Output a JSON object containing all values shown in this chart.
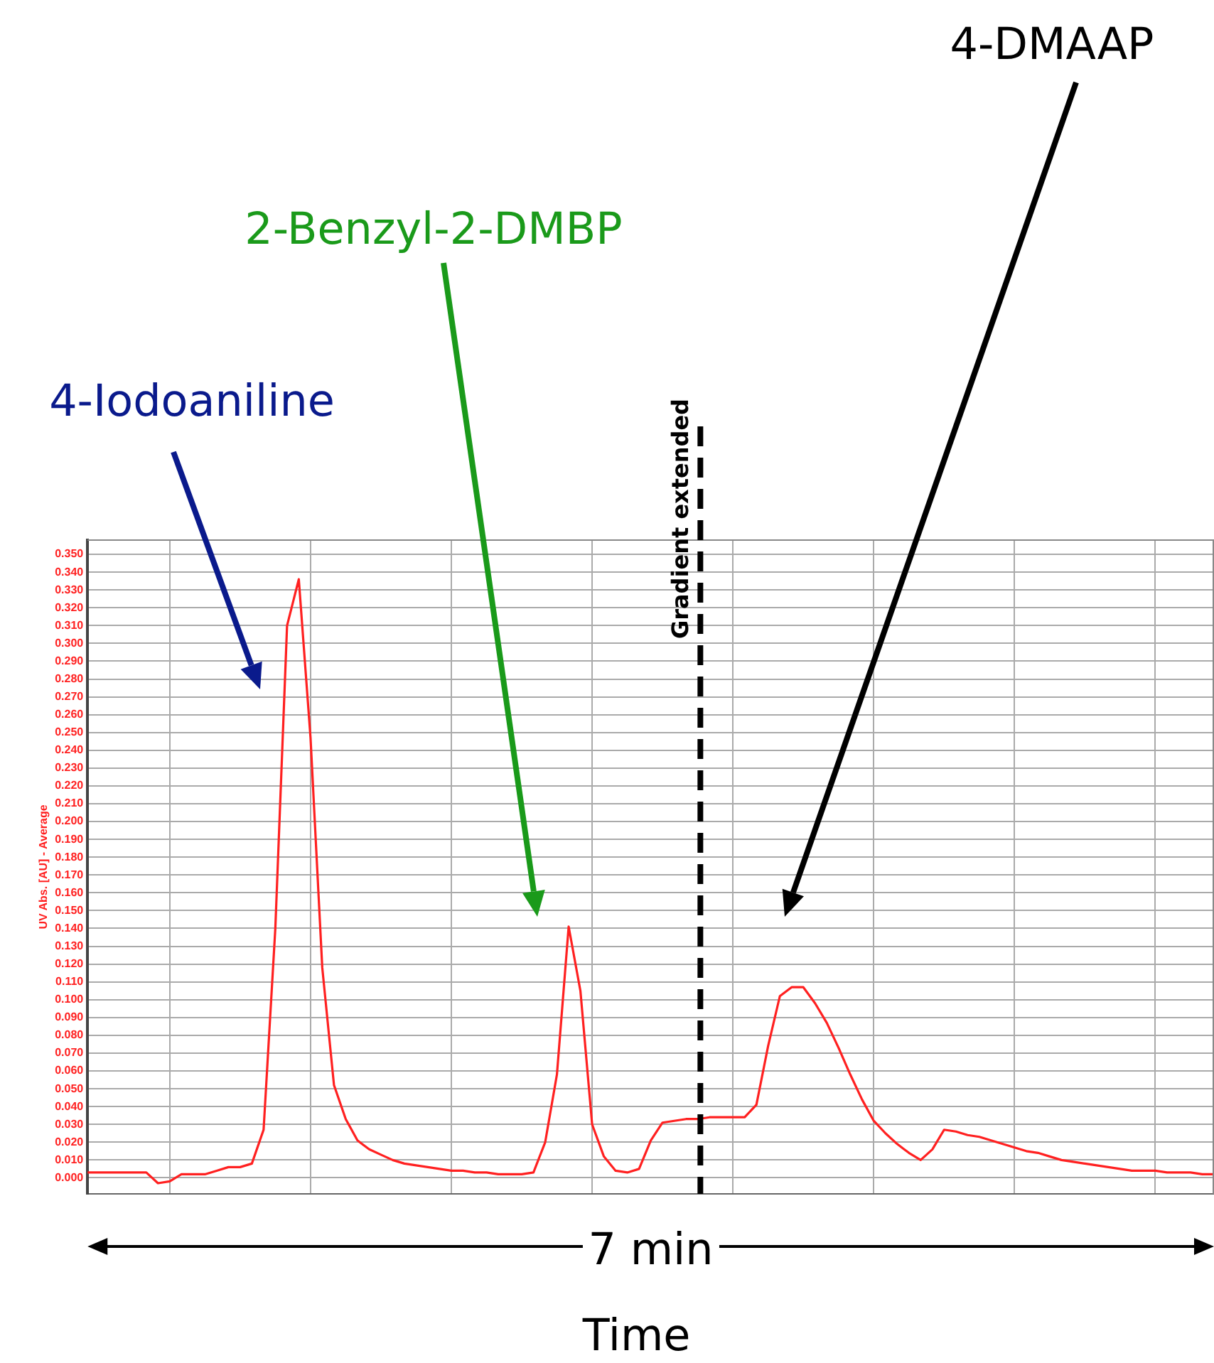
{
  "chart_data": {
    "type": "line",
    "xlabel": "Time",
    "ylabel": "UV Abs. [AU] - Average",
    "legend": false,
    "grid": true,
    "tick_labels": "y",
    "marker": "none",
    "line_style": "solid",
    "categories": [
      null,
      null,
      null,
      null,
      null,
      null,
      null,
      null,
      null,
      null,
      null,
      null,
      null,
      null,
      null,
      null,
      null,
      null,
      null,
      null,
      null,
      null,
      null,
      null,
      null,
      null,
      null,
      null,
      null,
      null,
      null,
      null,
      null,
      null,
      null,
      null,
      null,
      null,
      null,
      null,
      null,
      null,
      null,
      null,
      null,
      null,
      null,
      null,
      null,
      null,
      null,
      null,
      null,
      null,
      null,
      null,
      null,
      null,
      null,
      null,
      null,
      null,
      null,
      null,
      null,
      null,
      null,
      null,
      null,
      null,
      null,
      null,
      null,
      null,
      null,
      null,
      null,
      null,
      null,
      null,
      null,
      null,
      null,
      null,
      null,
      null,
      null,
      null,
      null,
      null,
      null,
      null,
      null,
      null,
      null,
      null,
      null
    ],
    "series": [
      {
        "color": "#ff2020",
        "values": [
          0.003,
          0.003,
          0.003,
          0.003,
          0.003,
          0.003,
          -0.003,
          -0.002,
          0.002,
          0.002,
          0.002,
          0.004,
          0.006,
          0.006,
          0.008,
          0.027,
          0.14,
          0.31,
          0.336,
          0.247,
          0.118,
          0.052,
          0.033,
          0.021,
          0.016,
          0.013,
          0.01,
          0.008,
          0.007,
          0.006,
          0.005,
          0.004,
          0.004,
          0.003,
          0.003,
          0.002,
          0.002,
          0.002,
          0.003,
          0.02,
          0.058,
          0.141,
          0.105,
          0.03,
          0.012,
          0.004,
          0.003,
          0.005,
          0.021,
          0.031,
          0.032,
          0.033,
          0.033,
          0.034,
          0.034,
          0.034,
          0.034,
          0.041,
          0.074,
          0.102,
          0.107,
          0.107,
          0.098,
          0.087,
          0.073,
          0.058,
          0.044,
          0.032,
          0.025,
          0.019,
          0.014,
          0.01,
          0.016,
          0.027,
          0.026,
          0.024,
          0.023,
          0.021,
          0.019,
          0.017,
          0.015,
          0.014,
          0.012,
          0.01,
          0.009,
          0.008,
          0.007,
          0.006,
          0.005,
          0.004,
          0.004,
          0.004,
          0.003,
          0.003,
          0.003,
          0.002,
          0.002
        ]
      }
    ],
    "ylim": [
      -0.009,
      0.358
    ],
    "yticks": [
      {
        "value": 0,
        "label": "0.000"
      },
      {
        "value": 0.01,
        "label": "0.010"
      },
      {
        "value": 0.02,
        "label": "0.020"
      },
      {
        "value": 0.03,
        "label": "0.030"
      },
      {
        "value": 0.04,
        "label": "0.040"
      },
      {
        "value": 0.05,
        "label": "0.050"
      },
      {
        "value": 0.06,
        "label": "0.060"
      },
      {
        "value": 0.07,
        "label": "0.070"
      },
      {
        "value": 0.08,
        "label": "0.080"
      },
      {
        "value": 0.09,
        "label": "0.090"
      },
      {
        "value": 0.1,
        "label": "0.100"
      },
      {
        "value": 0.11,
        "label": "0.110"
      },
      {
        "value": 0.12,
        "label": "0.120"
      },
      {
        "value": 0.13,
        "label": "0.130"
      },
      {
        "value": 0.14,
        "label": "0.140"
      },
      {
        "value": 0.15,
        "label": "0.150"
      },
      {
        "value": 0.16,
        "label": "0.160"
      },
      {
        "value": 0.17,
        "label": "0.170"
      },
      {
        "value": 0.18,
        "label": "0.180"
      },
      {
        "value": 0.19,
        "label": "0.190"
      },
      {
        "value": 0.2,
        "label": "0.200"
      },
      {
        "value": 0.21,
        "label": "0.210"
      },
      {
        "value": 0.22,
        "label": "0.220"
      },
      {
        "value": 0.23,
        "label": "0.230"
      },
      {
        "value": 0.24,
        "label": "0.240"
      },
      {
        "value": 0.25,
        "label": "0.250"
      },
      {
        "value": 0.26,
        "label": "0.260"
      },
      {
        "value": 0.27,
        "label": "0.270"
      },
      {
        "value": 0.28,
        "label": "0.280"
      },
      {
        "value": 0.29,
        "label": "0.290"
      },
      {
        "value": 0.3,
        "label": "0.300"
      },
      {
        "value": 0.31,
        "label": "0.310"
      },
      {
        "value": 0.32,
        "label": "0.320"
      },
      {
        "value": 0.33,
        "label": "0.330"
      },
      {
        "value": 0.34,
        "label": "0.340"
      },
      {
        "value": 0.35,
        "label": "0.350"
      }
    ],
    "annotations": [
      "4-Iodoaniline",
      "2-Benzyl-2-DMBP",
      "4-DMAAP",
      "Gradient extended",
      "7 min"
    ]
  }
}
